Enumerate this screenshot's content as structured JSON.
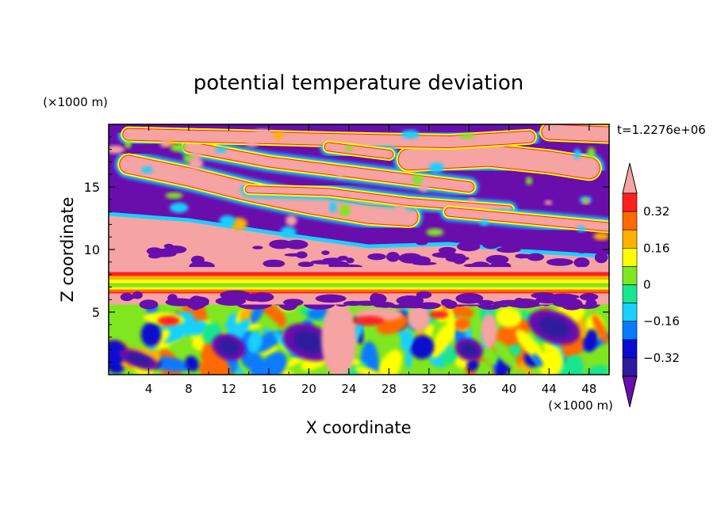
{
  "chart_data": {
    "type": "heatmap",
    "title": "potential temperature deviation",
    "xlabel": "X coordinate",
    "ylabel": "Z coordinate",
    "x_unit_label": "(×1000 m)",
    "y_unit_label": "(×1000 m)",
    "time_label": "t=1.2276e+06",
    "xlim": [
      0,
      50
    ],
    "ylim": [
      0,
      20
    ],
    "x_ticks": [
      4,
      8,
      12,
      16,
      20,
      24,
      28,
      32,
      36,
      40,
      44,
      48
    ],
    "y_ticks": [
      5,
      10,
      15
    ],
    "colorbar": {
      "levels": [
        -0.4,
        -0.32,
        -0.24,
        -0.16,
        -0.08,
        0,
        0.08,
        0.16,
        0.24,
        0.32,
        0.4
      ],
      "tick_labels": [
        "0.32",
        "0.16",
        "0",
        "−0.16",
        "−0.32"
      ],
      "tick_values": [
        0.32,
        0.16,
        0,
        -0.16,
        -0.32
      ],
      "colors": [
        "#6a0dad",
        "#2d1a9e",
        "#0a0ad0",
        "#0a7aff",
        "#19d0ff",
        "#19e690",
        "#7fe620",
        "#ffff00",
        "#ffb000",
        "#ff6a00",
        "#ff2020",
        "#f5a3a3"
      ],
      "extends": "both"
    },
    "layers": [
      {
        "z_min": 0,
        "z_max": 6,
        "description": "turbulent mixed layer"
      },
      {
        "z_min": 6,
        "z_max": 8,
        "description": "stable banded layer"
      },
      {
        "z_min": 8,
        "z_max": 20,
        "description": "alternating warm and cold streaks"
      }
    ]
  }
}
